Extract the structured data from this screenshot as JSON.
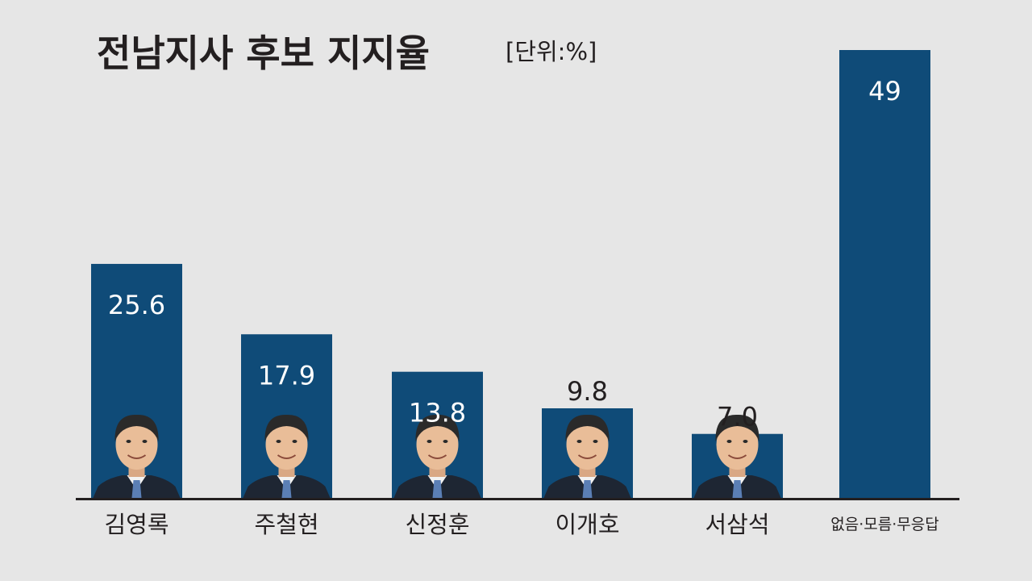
{
  "title": "전남지사 후보 지지율",
  "unit": "[단위:%]",
  "colors": {
    "background": "#e6e6e6",
    "bar": "#0f4b78",
    "axis": "#231f20",
    "value_inside": "#ffffff",
    "value_outside": "#231f20",
    "text": "#231f20"
  },
  "chart_data": {
    "type": "bar",
    "title": "전남지사 후보 지지율",
    "unit": "[단위:%]",
    "categories": [
      "김영록",
      "주철현",
      "신정훈",
      "이개호",
      "서삼석",
      "없음·모름·무응답"
    ],
    "values": [
      25.6,
      17.9,
      13.8,
      9.8,
      7.0,
      49
    ],
    "value_labels": [
      "25.6",
      "17.9",
      "13.8",
      "9.8",
      "7.0",
      "49"
    ],
    "xlabel": "",
    "ylabel": "",
    "ylim": [
      0,
      49
    ],
    "grid": false,
    "legend": "none",
    "candidate_photos": [
      "김영록",
      "주철현",
      "신정훈",
      "이개호",
      "서삼석"
    ]
  }
}
